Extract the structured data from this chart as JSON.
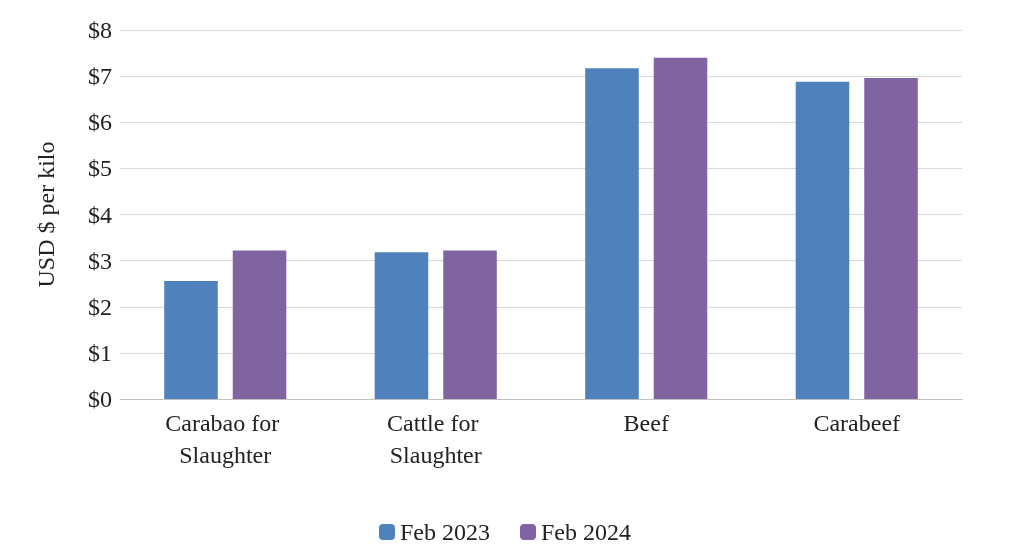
{
  "chart_data": {
    "type": "bar",
    "ylabel": "USD $ per kilo",
    "categories": [
      "Carabao for Slaughter",
      "Cattle for Slaughter",
      "Beef",
      "Carabeef"
    ],
    "series": [
      {
        "name": "Feb 2023",
        "color": "#4f81bd",
        "values": [
          2.56,
          3.18,
          7.17,
          6.88
        ]
      },
      {
        "name": "Feb 2024",
        "color": "#8064a2",
        "values": [
          3.22,
          3.22,
          7.4,
          6.96
        ]
      }
    ],
    "ylim": [
      0,
      8
    ],
    "yticks": [
      {
        "value": 0,
        "label": "$0"
      },
      {
        "value": 1,
        "label": "$1"
      },
      {
        "value": 2,
        "label": "$2"
      },
      {
        "value": 3,
        "label": "$3"
      },
      {
        "value": 4,
        "label": "$4"
      },
      {
        "value": 5,
        "label": "$5"
      },
      {
        "value": 6,
        "label": "$6"
      },
      {
        "value": 7,
        "label": "$7"
      },
      {
        "value": 8,
        "label": "$8"
      }
    ],
    "grid": "y",
    "legend": "bottom"
  }
}
